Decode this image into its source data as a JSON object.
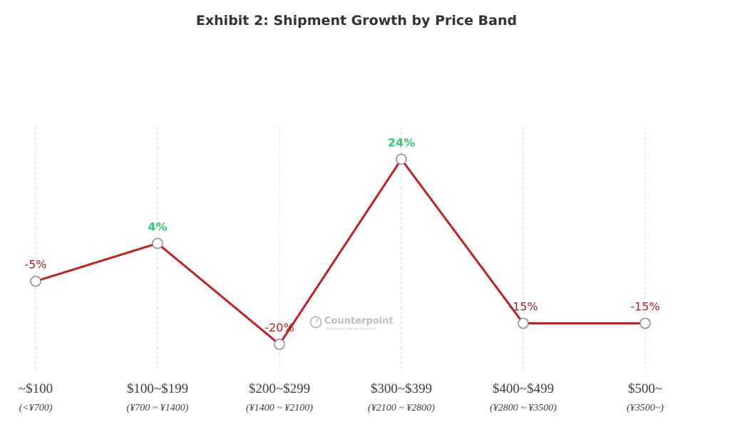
{
  "chart_data": {
    "type": "line",
    "title": "Exhibit 2: Shipment Growth by Price Band",
    "xlabel": "",
    "ylabel": "",
    "categories": [
      "~$100",
      "$100~$199",
      "$200~$299",
      "$300~$399",
      "$400~$499",
      "$500~"
    ],
    "category_sublabels": [
      "(<¥700)",
      "(¥700 ~ ¥1400)",
      "(¥1400 ~ ¥2100)",
      "(¥2100 ~ ¥2800)",
      "(¥2800 ~ ¥3500)",
      "(¥3500~)"
    ],
    "values": [
      -5,
      4,
      -20,
      24,
      -15,
      -15
    ],
    "value_labels": [
      "-5%",
      "4%",
      "-20%",
      "24%",
      "-15%",
      "-15%"
    ],
    "unit": "%",
    "grid": "vertical dashed lines at categories",
    "legend": "none",
    "colors": {
      "line": "#c41f1f",
      "positive_label": "#2ecc71",
      "negative_label": "#b22222",
      "marker_fill": "#ffffff",
      "marker_stroke": "#8a8a8a",
      "grid": "#d9d9d9"
    }
  },
  "watermark": {
    "brand": "Counterpoint",
    "tagline": "Technology Market Research"
  }
}
